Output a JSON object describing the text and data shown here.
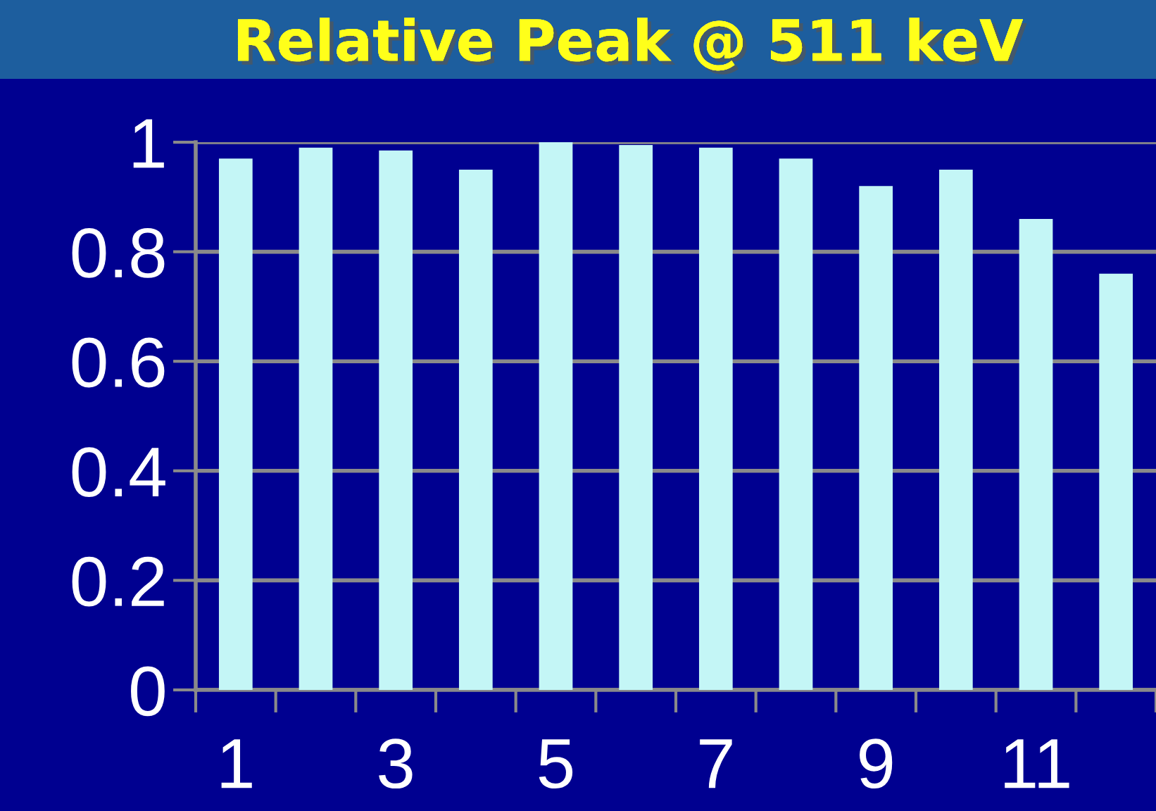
{
  "chart_data": {
    "type": "bar",
    "title": "Relative Peak @ 511 keV",
    "categories": [
      "1",
      null,
      "3",
      null,
      "5",
      null,
      "7",
      null,
      "9",
      null,
      "11",
      null
    ],
    "values": [
      0.97,
      0.99,
      0.985,
      0.95,
      1.0,
      0.995,
      0.99,
      0.97,
      0.92,
      0.95,
      0.86,
      0.76
    ],
    "color": "#c4f6f6",
    "ylim": [
      0,
      1
    ],
    "yticks": [
      0,
      0.2,
      0.4,
      0.6,
      0.8,
      1
    ],
    "grid": "y"
  }
}
